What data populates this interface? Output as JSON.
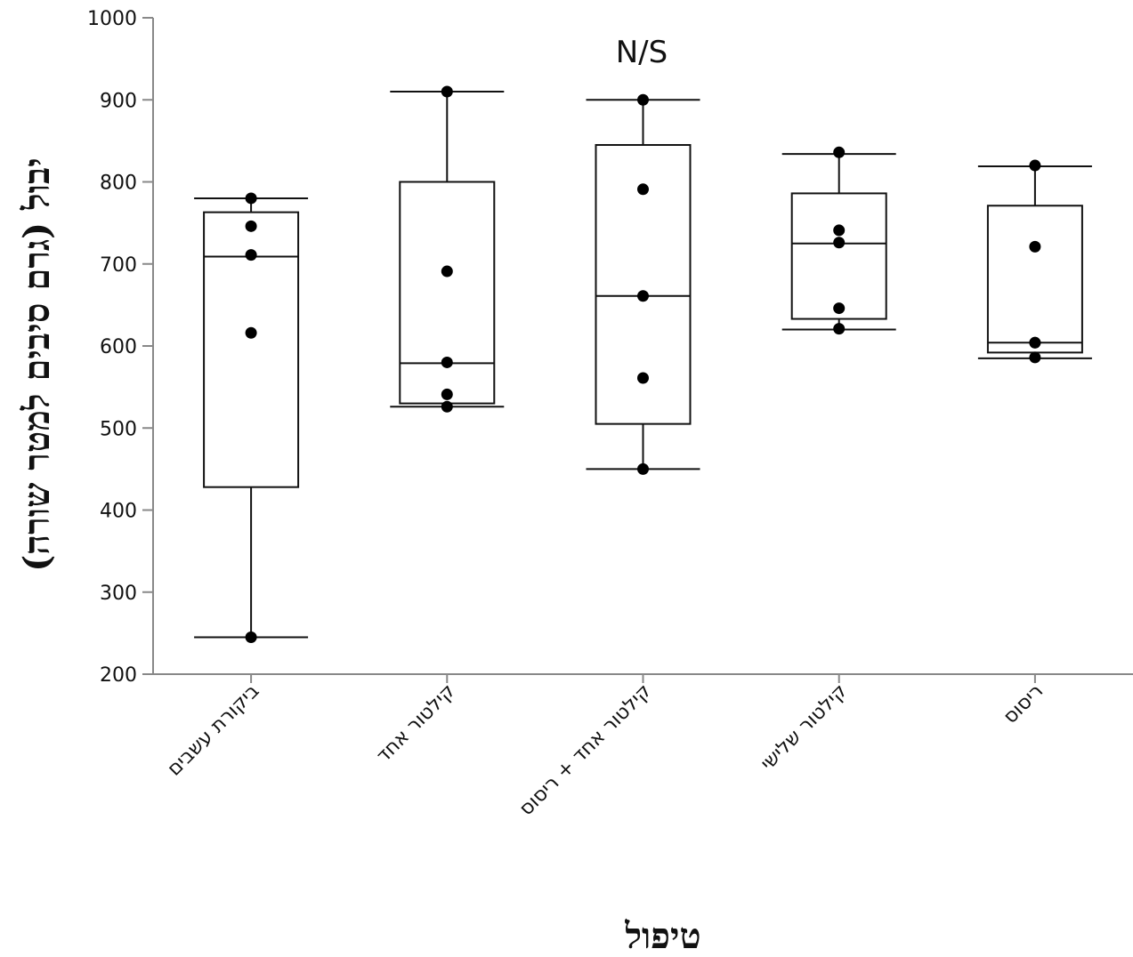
{
  "chart_data": {
    "type": "box",
    "title": "",
    "annotation": "N/S",
    "xlabel": "טיפול",
    "ylabel": "יבול (גרם סיבים למטר שורה)",
    "ylim": [
      200,
      1000
    ],
    "yticks": [
      200,
      300,
      400,
      500,
      600,
      700,
      800,
      900,
      1000
    ],
    "grid": false,
    "legend": "none",
    "categories": [
      "ביקורת עשבים",
      "קילטור אחד",
      "קילטור אחד + ריסוס",
      "קילטור שלישי",
      "ריסוס"
    ],
    "boxes": [
      {
        "min": 245,
        "q1": 428,
        "median": 709,
        "q3": 763,
        "max": 780
      },
      {
        "min": 526,
        "q1": 530,
        "median": 579,
        "q3": 800,
        "max": 910
      },
      {
        "min": 450,
        "q1": 505,
        "median": 661,
        "q3": 845,
        "max": 900
      },
      {
        "min": 620,
        "q1": 633,
        "median": 725,
        "q3": 786,
        "max": 834
      },
      {
        "min": 585,
        "q1": 592,
        "median": 604,
        "q3": 771,
        "max": 819
      }
    ],
    "points": [
      [
        780,
        746,
        711,
        616,
        245
      ],
      [
        910,
        691,
        580,
        541,
        526
      ],
      [
        900,
        791,
        661,
        561,
        450
      ],
      [
        836,
        741,
        726,
        646,
        621
      ],
      [
        820,
        721,
        604,
        604,
        586
      ]
    ],
    "colors": {
      "line": "#111111",
      "point": "#000000",
      "box_fill": "#ffffff"
    }
  }
}
